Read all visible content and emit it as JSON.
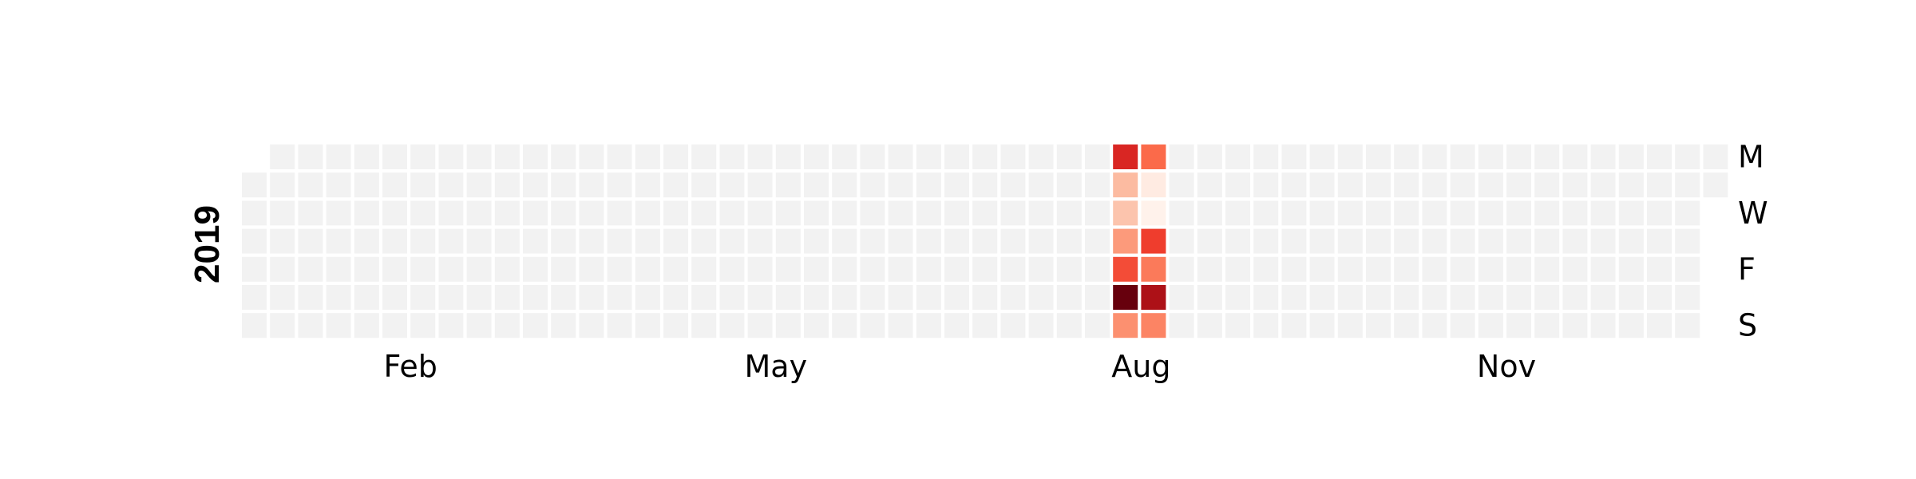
{
  "chart_data": {
    "type": "heatmap",
    "year": "2019",
    "first_day": "2019-01-01",
    "colormap": "Reds",
    "empty_color": "#f2f2f2",
    "month_labels": [
      "Feb",
      "May",
      "Aug",
      "Nov"
    ],
    "day_labels": [
      "M",
      "W",
      "F",
      "S"
    ],
    "values": {
      "2019-08-05": 0.7,
      "2019-08-06": 0.25,
      "2019-08-07": 0.22,
      "2019-08-08": 0.35,
      "2019-08-09": 0.58,
      "2019-08-10": 1.0,
      "2019-08-11": 0.38,
      "2019-08-12": 0.5,
      "2019-08-13": 0.06,
      "2019-08-14": 0.02,
      "2019-08-15": 0.62,
      "2019-08-16": 0.45,
      "2019-08-17": 0.85,
      "2019-08-18": 0.42
    }
  }
}
